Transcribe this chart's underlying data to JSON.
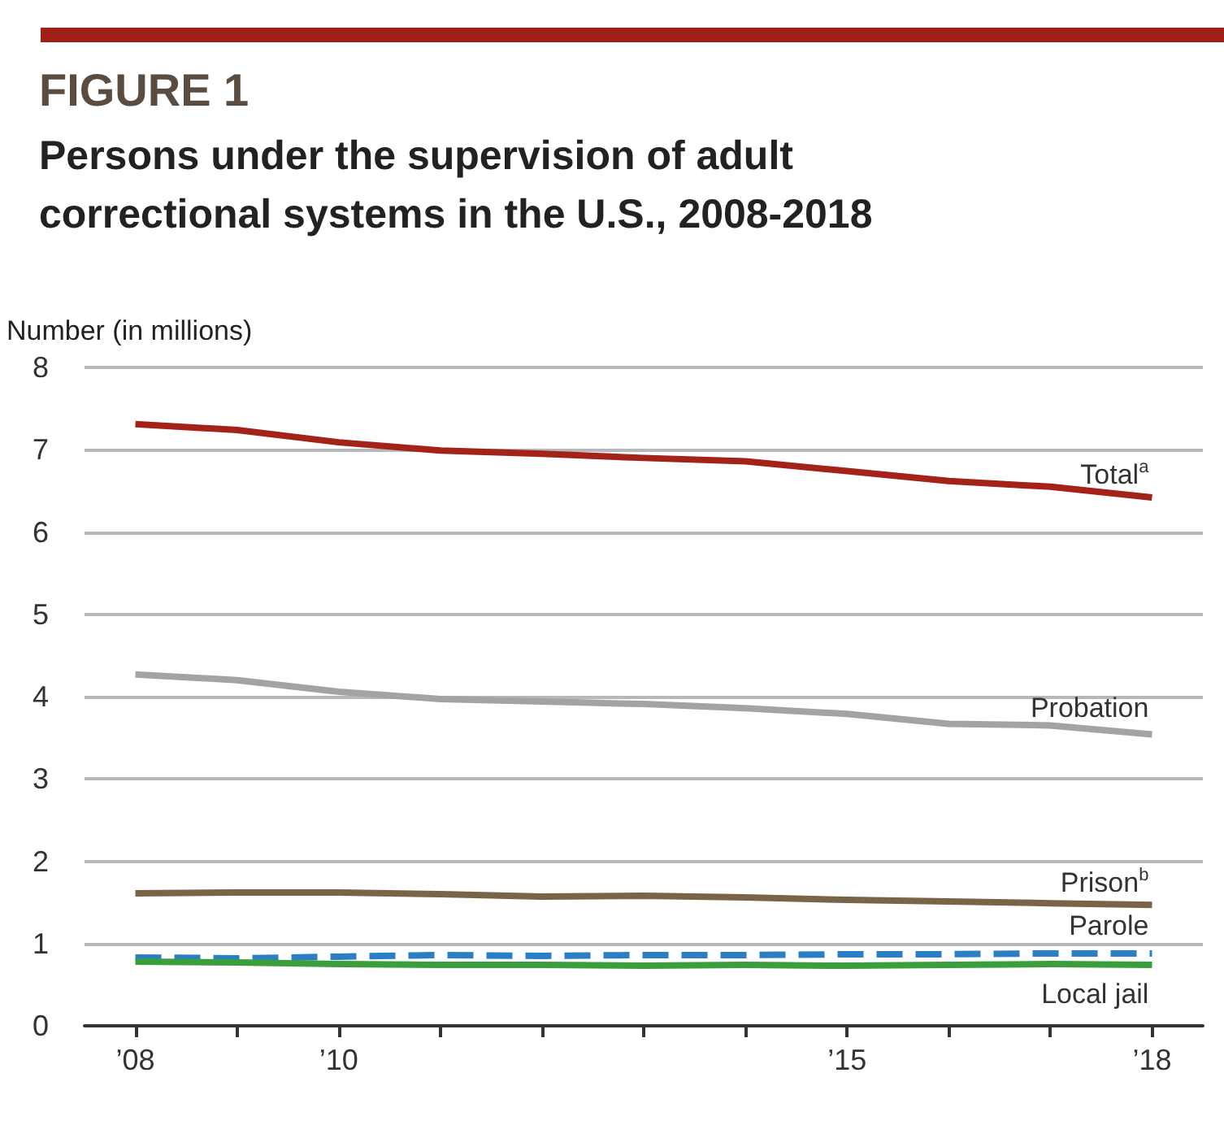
{
  "chart_data": {
    "type": "line",
    "title": "FIGURE 1",
    "subtitle": "Persons under the supervision of adult correctional systems in the U.S., 2008-2018",
    "ylabel": "Number (in millions)",
    "x": [
      2008,
      2009,
      2010,
      2011,
      2012,
      2013,
      2014,
      2015,
      2016,
      2017,
      2018
    ],
    "xlim": [
      2007.5,
      2018.5
    ],
    "xticks": [
      {
        "value": 2008,
        "label": "’08"
      },
      {
        "value": 2009,
        "label": null
      },
      {
        "value": 2010,
        "label": "’10"
      },
      {
        "value": 2011,
        "label": null
      },
      {
        "value": 2012,
        "label": null
      },
      {
        "value": 2013,
        "label": null
      },
      {
        "value": 2014,
        "label": null
      },
      {
        "value": 2015,
        "label": "’15"
      },
      {
        "value": 2016,
        "label": null
      },
      {
        "value": 2017,
        "label": null
      },
      {
        "value": 2018,
        "label": "’18"
      }
    ],
    "ylim": [
      0,
      8
    ],
    "yticks": [
      0,
      1,
      2,
      3,
      4,
      5,
      6,
      7,
      8
    ],
    "grid": "y",
    "legend": false,
    "marker": "none",
    "series": [
      {
        "name": "Total$^{a}$",
        "color": "#a3231a",
        "values": [
          7.31,
          7.24,
          7.09,
          6.99,
          6.95,
          6.9,
          6.86,
          6.74,
          6.62,
          6.55,
          6.42
        ]
      },
      {
        "name": "Probation",
        "color": "#a3a3a3",
        "values": [
          4.27,
          4.2,
          4.06,
          3.97,
          3.94,
          3.91,
          3.86,
          3.79,
          3.67,
          3.65,
          3.54
        ]
      },
      {
        "name": "Prison$^{b}$",
        "color": "#7a6448",
        "values": [
          1.61,
          1.62,
          1.62,
          1.6,
          1.57,
          1.58,
          1.56,
          1.53,
          1.51,
          1.49,
          1.47
        ]
      },
      {
        "name": "Parole",
        "color": "#2a7fc4",
        "line_style": "dashed",
        "values": [
          0.83,
          0.82,
          0.84,
          0.86,
          0.85,
          0.86,
          0.86,
          0.87,
          0.87,
          0.88,
          0.88
        ]
      },
      {
        "name": "Local jail",
        "color": "#3a9e3c",
        "values": [
          0.78,
          0.77,
          0.75,
          0.74,
          0.74,
          0.73,
          0.74,
          0.73,
          0.74,
          0.75,
          0.74
        ]
      }
    ]
  }
}
